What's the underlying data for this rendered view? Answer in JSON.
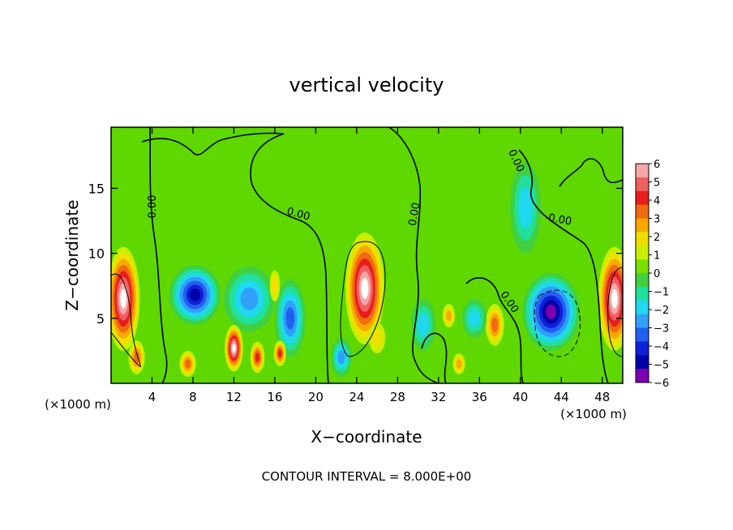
{
  "chart_data": {
    "type": "heatmap",
    "title": "vertical velocity",
    "xlabel": "X−coordinate",
    "ylabel": "Z−coordinate",
    "x_unit_left": "(×1000 m)",
    "x_unit_right": "(×1000 m)",
    "footer": "CONTOUR INTERVAL = 8.000E+00",
    "xlim": [
      0,
      50
    ],
    "ylim": [
      0,
      19.7
    ],
    "x_ticks": [
      4,
      8,
      12,
      16,
      20,
      24,
      28,
      32,
      36,
      40,
      44,
      48
    ],
    "x_tick_labels": [
      "4",
      "8",
      "12",
      "16",
      "20",
      "24",
      "28",
      "32",
      "36",
      "40",
      "44",
      "48"
    ],
    "y_ticks": [
      5,
      10,
      15
    ],
    "y_tick_labels": [
      "5",
      "10",
      "15"
    ],
    "colorbar": {
      "min": -6,
      "max": 6,
      "labels": [
        "6",
        "5",
        "4",
        "3",
        "2",
        "1",
        "0",
        "−1",
        "−2",
        "−3",
        "−4",
        "−5",
        "−6"
      ],
      "colors": [
        "#f4a9a9",
        "#f06060",
        "#e81e1e",
        "#f06a10",
        "#f8a800",
        "#f0e000",
        "#c8f000",
        "#78e000",
        "#40d040",
        "#20e0a0",
        "#20d8f0",
        "#30a0f8",
        "#2060f0",
        "#1020d8",
        "#0000a8",
        "#7a00b0"
      ]
    },
    "contour_labels": [
      "0.00",
      "0.00",
      "0.00",
      "0.00",
      "0.00",
      "0.00",
      "0.00"
    ],
    "features": [
      {
        "x": 1.2,
        "z": 6.5,
        "w": 1.6,
        "h": 4.0,
        "sign": 1,
        "amp": 9
      },
      {
        "x": 24.8,
        "z": 7.3,
        "w": 1.9,
        "h": 4.3,
        "sign": 1,
        "amp": 9
      },
      {
        "x": 49.2,
        "z": 6.5,
        "w": 1.6,
        "h": 4.0,
        "sign": 1,
        "amp": 9
      },
      {
        "x": 8.2,
        "z": 6.8,
        "w": 2.5,
        "h": 2.3,
        "sign": -1,
        "amp": 7
      },
      {
        "x": 13.5,
        "z": 6.5,
        "w": 2.5,
        "h": 2.5,
        "sign": -1,
        "amp": 4
      },
      {
        "x": 17.5,
        "z": 5.0,
        "w": 1.5,
        "h": 3.0,
        "sign": -1,
        "amp": 5
      },
      {
        "x": 12.0,
        "z": 2.7,
        "w": 0.9,
        "h": 1.8,
        "sign": 1,
        "amp": 8
      },
      {
        "x": 14.3,
        "z": 2.0,
        "w": 0.7,
        "h": 1.2,
        "sign": 1,
        "amp": 5
      },
      {
        "x": 16.5,
        "z": 2.3,
        "w": 0.6,
        "h": 1.0,
        "sign": 1,
        "amp": 5
      },
      {
        "x": 16.0,
        "z": 7.5,
        "w": 0.5,
        "h": 1.2,
        "sign": 1,
        "amp": 2
      },
      {
        "x": 7.5,
        "z": 1.5,
        "w": 0.8,
        "h": 1.0,
        "sign": 1,
        "amp": 4
      },
      {
        "x": 2.5,
        "z": 2.0,
        "w": 0.8,
        "h": 1.3,
        "sign": 1,
        "amp": 4
      },
      {
        "x": 43.0,
        "z": 5.5,
        "w": 2.8,
        "h": 3.0,
        "sign": -1,
        "amp": 12
      },
      {
        "x": 40.5,
        "z": 13.5,
        "w": 1.5,
        "h": 3.5,
        "sign": -1,
        "amp": 3
      },
      {
        "x": 37.5,
        "z": 4.5,
        "w": 0.9,
        "h": 1.6,
        "sign": 1,
        "amp": 4
      },
      {
        "x": 35.5,
        "z": 5.0,
        "w": 1.2,
        "h": 1.5,
        "sign": -1,
        "amp": 3
      },
      {
        "x": 33.0,
        "z": 5.2,
        "w": 0.6,
        "h": 0.9,
        "sign": 1,
        "amp": 3
      },
      {
        "x": 30.5,
        "z": 4.5,
        "w": 1.2,
        "h": 2.0,
        "sign": -1,
        "amp": 3
      },
      {
        "x": 34.0,
        "z": 1.5,
        "w": 0.6,
        "h": 0.8,
        "sign": 1,
        "amp": 3
      },
      {
        "x": 22.5,
        "z": 2.0,
        "w": 1.0,
        "h": 1.5,
        "sign": -1,
        "amp": 4
      },
      {
        "x": 26.0,
        "z": 3.5,
        "w": 0.8,
        "h": 1.2,
        "sign": 1,
        "amp": 2
      }
    ]
  }
}
